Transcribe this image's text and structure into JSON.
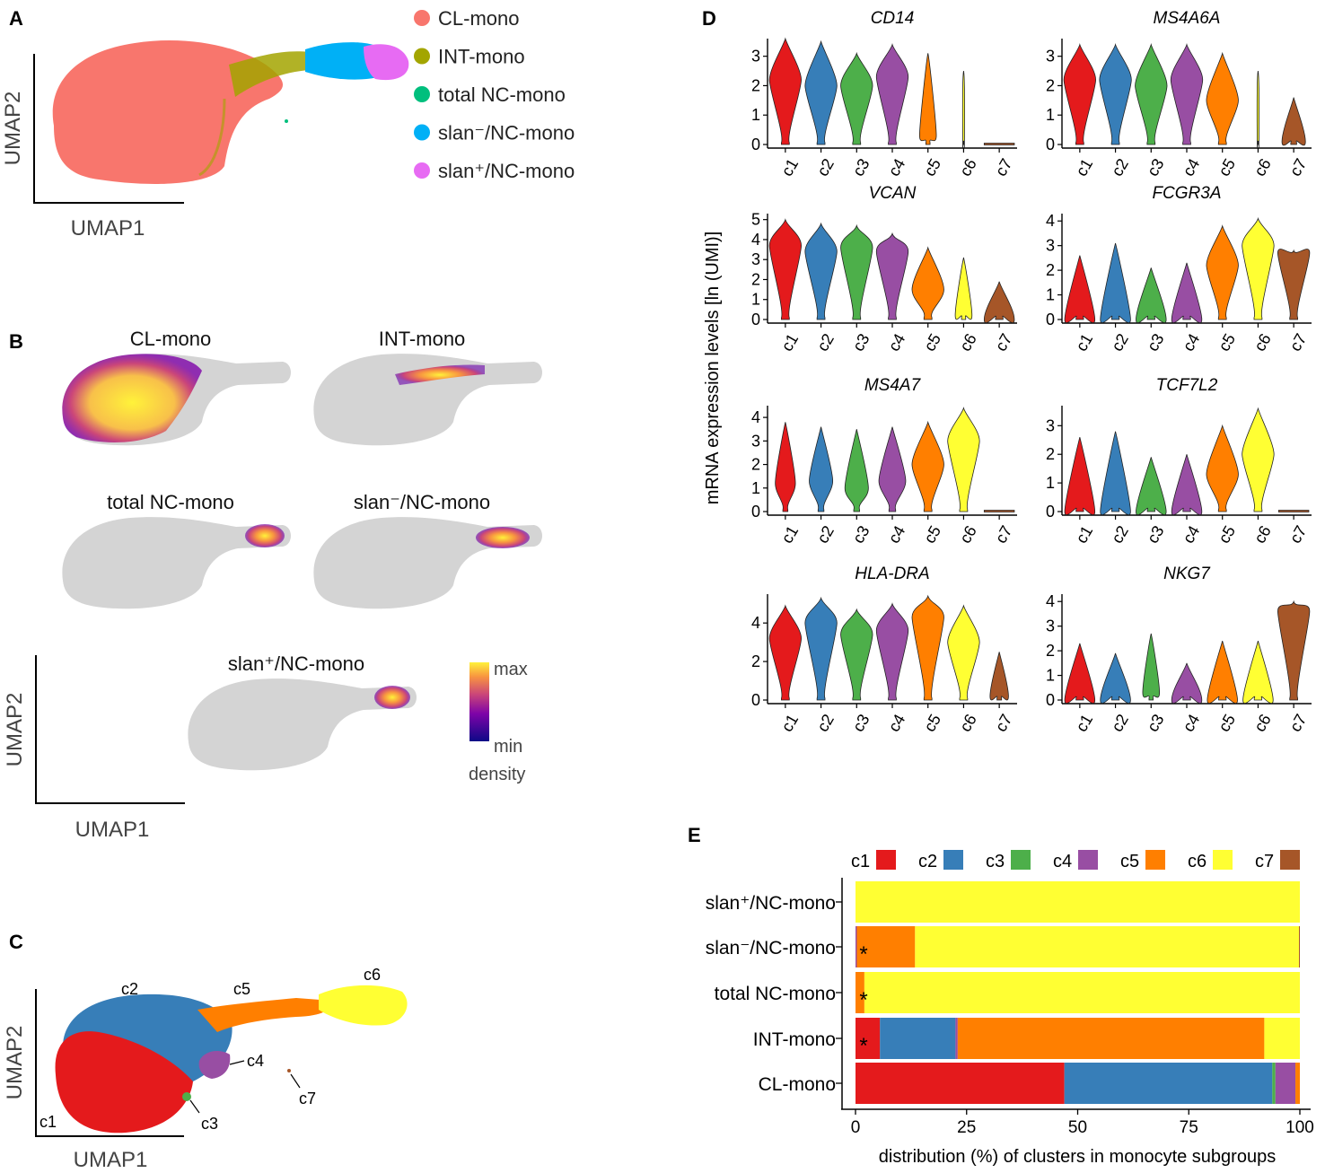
{
  "panels": {
    "A": {
      "letter": "A",
      "xlabel": "UMAP1",
      "ylabel": "UMAP2",
      "legend": [
        {
          "label": "CL-mono",
          "color": "#F8766D"
        },
        {
          "label": "INT-mono",
          "color": "#A3A500"
        },
        {
          "label": "total NC-mono",
          "color": "#00BF7D"
        },
        {
          "label": "slan⁻/NC-mono",
          "color": "#00B0F6"
        },
        {
          "label": "slan⁺/NC-mono",
          "color": "#E76BF3"
        }
      ]
    },
    "B": {
      "letter": "B",
      "xlabel": "UMAP1",
      "ylabel": "UMAP2",
      "titles": [
        "CL-mono",
        "INT-mono",
        "total NC-mono",
        "slan⁻/NC-mono",
        "slan⁺/NC-mono"
      ],
      "colorbar": {
        "max": "max",
        "min": "min",
        "title": "density"
      }
    },
    "C": {
      "letter": "C",
      "xlabel": "UMAP1",
      "ylabel": "UMAP2",
      "cluster_labels": [
        "c1",
        "c2",
        "c3",
        "c4",
        "c5",
        "c6",
        "c7"
      ]
    },
    "D": {
      "letter": "D",
      "ylabel": "mRNA expression levels [ln (UMI)]",
      "clusters": [
        "c1",
        "c2",
        "c3",
        "c4",
        "c5",
        "c6",
        "c7"
      ]
    },
    "E": {
      "letter": "E",
      "xlabel": "distribution (%) of clusters in monocyte subgroups"
    }
  },
  "chart_data": [
    {
      "type": "violin",
      "panel": "D",
      "ylabel": "mRNA expression levels [ln (UMI)]",
      "categories": [
        "c1",
        "c2",
        "c3",
        "c4",
        "c5",
        "c6",
        "c7"
      ],
      "colors": [
        "#E41A1C",
        "#377EB8",
        "#4DAF4A",
        "#984EA3",
        "#FF7F00",
        "#FFFF33",
        "#A65628"
      ],
      "genes": [
        {
          "name": "CD14",
          "ylim": [
            0,
            3.6
          ],
          "yticks": [
            0,
            1,
            2,
            3
          ],
          "max": [
            3.6,
            3.5,
            3.1,
            3.4,
            3.1,
            2.5,
            0.05
          ],
          "median": [
            2.2,
            2.0,
            2.0,
            2.3,
            0.3,
            0.0,
            0.0
          ],
          "width": [
            0.95,
            0.95,
            0.95,
            0.95,
            0.5,
            0.05,
            0.9
          ]
        },
        {
          "name": "MS4A6A",
          "ylim": [
            0,
            3.6
          ],
          "yticks": [
            0,
            1,
            2,
            3
          ],
          "max": [
            3.4,
            3.4,
            3.4,
            3.4,
            3.1,
            2.5,
            1.6
          ],
          "median": [
            2.2,
            2.2,
            2.0,
            2.2,
            1.5,
            0.0,
            0.1
          ],
          "width": [
            0.95,
            0.95,
            0.95,
            0.95,
            0.95,
            0.05,
            0.7
          ]
        },
        {
          "name": "VCAN",
          "ylim": [
            0,
            5.3
          ],
          "yticks": [
            0,
            1,
            2,
            3,
            4,
            5
          ],
          "max": [
            5.0,
            4.8,
            4.7,
            4.3,
            3.6,
            3.1,
            1.9
          ],
          "median": [
            3.7,
            3.4,
            3.6,
            3.4,
            1.5,
            0.2,
            0.0
          ],
          "width": [
            0.95,
            0.95,
            0.95,
            0.95,
            0.95,
            0.5,
            0.9
          ]
        },
        {
          "name": "FCGR3A",
          "ylim": [
            0,
            4.3
          ],
          "yticks": [
            0,
            1,
            2,
            3,
            4
          ],
          "max": [
            2.6,
            3.1,
            2.1,
            2.3,
            3.8,
            4.1,
            2.8
          ],
          "median": [
            0.0,
            0.0,
            0.0,
            0.0,
            2.2,
            3.0,
            2.7
          ],
          "width": [
            0.9,
            0.9,
            0.9,
            0.9,
            0.95,
            0.95,
            0.95
          ]
        },
        {
          "name": "MS4A7",
          "ylim": [
            0,
            4.5
          ],
          "yticks": [
            0,
            1,
            2,
            3,
            4
          ],
          "max": [
            3.8,
            3.6,
            3.5,
            3.6,
            3.8,
            4.4,
            0.05
          ],
          "median": [
            1.2,
            1.3,
            1.0,
            1.3,
            2.0,
            3.0,
            0.0
          ],
          "width": [
            0.6,
            0.7,
            0.7,
            0.8,
            0.95,
            0.95,
            0.9
          ]
        },
        {
          "name": "TCF7L2",
          "ylim": [
            0,
            3.7
          ],
          "yticks": [
            0,
            1,
            2,
            3
          ],
          "max": [
            2.6,
            2.8,
            1.9,
            2.0,
            3.0,
            3.6,
            0.05
          ],
          "median": [
            0.0,
            0.0,
            0.0,
            0.0,
            1.3,
            2.0,
            0.0
          ],
          "width": [
            0.9,
            0.9,
            0.9,
            0.9,
            0.95,
            0.95,
            0.9
          ]
        },
        {
          "name": "HLA-DRA",
          "ylim": [
            0,
            5.5
          ],
          "yticks": [
            0,
            2,
            4
          ],
          "max": [
            4.9,
            5.3,
            4.7,
            5.0,
            5.4,
            4.9,
            2.5
          ],
          "median": [
            3.2,
            4.0,
            3.4,
            3.6,
            4.3,
            3.0,
            0.2
          ],
          "width": [
            0.95,
            0.95,
            0.95,
            0.95,
            0.95,
            0.95,
            0.55
          ]
        },
        {
          "name": "NKG7",
          "ylim": [
            0,
            4.3
          ],
          "yticks": [
            0,
            1,
            2,
            3,
            4
          ],
          "max": [
            2.3,
            1.9,
            2.7,
            1.5,
            2.4,
            2.4,
            4.0
          ],
          "median": [
            0.0,
            0.0,
            0.3,
            0.0,
            0.0,
            0.0,
            3.6
          ],
          "width": [
            0.9,
            0.9,
            0.5,
            0.9,
            0.9,
            0.9,
            0.95
          ]
        }
      ]
    },
    {
      "type": "stacked_bar_horizontal",
      "panel": "E",
      "xlabel": "distribution (%) of clusters in monocyte subgroups",
      "xlim": [
        0,
        100
      ],
      "xticks": [
        0,
        25,
        50,
        75,
        100
      ],
      "categories": [
        "slan⁺/NC-mono",
        "slan⁻/NC-mono",
        "total NC-mono",
        "INT-mono",
        "CL-mono"
      ],
      "annotations": [
        "",
        "*",
        "*",
        "*",
        ""
      ],
      "series": [
        {
          "name": "c1",
          "color": "#E41A1C",
          "values": [
            0,
            0,
            0,
            5.5,
            47
          ]
        },
        {
          "name": "c2",
          "color": "#377EB8",
          "values": [
            0,
            0,
            0,
            17,
            46.8
          ]
        },
        {
          "name": "c3",
          "color": "#4DAF4A",
          "values": [
            0,
            0,
            0,
            0,
            0.7
          ]
        },
        {
          "name": "c4",
          "color": "#984EA3",
          "values": [
            0,
            0.3,
            0,
            0.5,
            4.5
          ]
        },
        {
          "name": "c5",
          "color": "#FF7F00",
          "values": [
            0,
            13.1,
            2,
            69,
            1
          ]
        },
        {
          "name": "c6",
          "color": "#FFFF33",
          "values": [
            100,
            86.4,
            98,
            8,
            0
          ]
        },
        {
          "name": "c7",
          "color": "#A65628",
          "values": [
            0,
            0.2,
            0,
            0,
            0
          ]
        }
      ]
    }
  ]
}
